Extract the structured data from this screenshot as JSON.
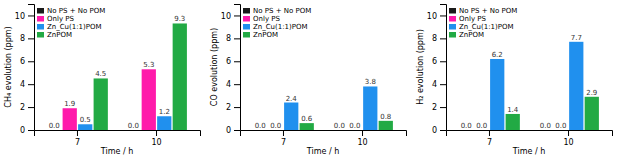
{
  "chart_data": [
    {
      "type": "bar",
      "xlabel": "Time / h",
      "ylabel": "CH₄ evolution (ppm)",
      "categories": [
        "7",
        "10"
      ],
      "series": [
        {
          "name": "No PS + No POM",
          "color": "#1a1a1a",
          "values": [
            0.0,
            0.0
          ],
          "value_labels": [
            "0.0",
            "0.0"
          ]
        },
        {
          "name": "Only PS",
          "color": "#ff1aaa",
          "values": [
            1.9,
            5.3
          ],
          "value_labels": [
            "1.9",
            "5.3"
          ]
        },
        {
          "name": "Zn_Cu(1:1)POM",
          "color": "#2090ee",
          "values": [
            0.5,
            1.2
          ],
          "value_labels": [
            "0.5",
            "1.2"
          ]
        },
        {
          "name": "ZnPOM",
          "color": "#22aa44",
          "values": [
            4.5,
            9.3
          ],
          "value_labels": [
            "4.5",
            "9.3"
          ]
        }
      ],
      "ylim": [
        0,
        11
      ],
      "yticks": [
        0,
        2,
        4,
        6,
        8,
        10
      ],
      "legend": "upper left",
      "grid": false,
      "data_labels": true
    },
    {
      "type": "bar",
      "xlabel": "Time / h",
      "ylabel": "CO evolution (ppm)",
      "categories": [
        "7",
        "10"
      ],
      "series": [
        {
          "name": "No PS + No POM",
          "color": "#1a1a1a",
          "values": [
            0.0,
            0.0
          ],
          "value_labels": [
            "0.0",
            "0.0"
          ]
        },
        {
          "name": "Only PS",
          "color": "#ff1aaa",
          "values": [
            0.0,
            0.0
          ],
          "value_labels": [
            "0.0",
            "0.0"
          ]
        },
        {
          "name": "Zn_Cu(1:1)POM",
          "color": "#2090ee",
          "values": [
            2.4,
            3.8
          ],
          "value_labels": [
            "2.4",
            "3.8"
          ]
        },
        {
          "name": "ZnPOM",
          "color": "#22aa44",
          "values": [
            0.6,
            0.8
          ],
          "value_labels": [
            "0.6",
            "0.8"
          ]
        }
      ],
      "ylim": [
        0,
        11
      ],
      "yticks": [
        0,
        2,
        4,
        6,
        8,
        10
      ],
      "legend": "upper left",
      "grid": false,
      "data_labels": true
    },
    {
      "type": "bar",
      "xlabel": "Time / h",
      "ylabel": "H₂ evolution (ppm)",
      "categories": [
        "7",
        "10"
      ],
      "series": [
        {
          "name": "No PS + No POM",
          "color": "#1a1a1a",
          "values": [
            0.0,
            0.0
          ],
          "value_labels": [
            "0.0",
            "0.0"
          ]
        },
        {
          "name": "Only PS",
          "color": "#ff1aaa",
          "values": [
            0.0,
            0.0
          ],
          "value_labels": [
            "0.0",
            "0.0"
          ]
        },
        {
          "name": "Zn_Cu(1:1)POM",
          "color": "#2090ee",
          "values": [
            6.2,
            7.7
          ],
          "value_labels": [
            "6.2",
            "7.7"
          ]
        },
        {
          "name": "ZnPOM",
          "color": "#22aa44",
          "values": [
            1.4,
            2.9
          ],
          "value_labels": [
            "1.4",
            "2.9"
          ]
        }
      ],
      "ylim": [
        0,
        11
      ],
      "yticks": [
        0,
        2,
        4,
        6,
        8,
        10
      ],
      "legend": "upper left",
      "grid": false,
      "data_labels": true
    }
  ]
}
